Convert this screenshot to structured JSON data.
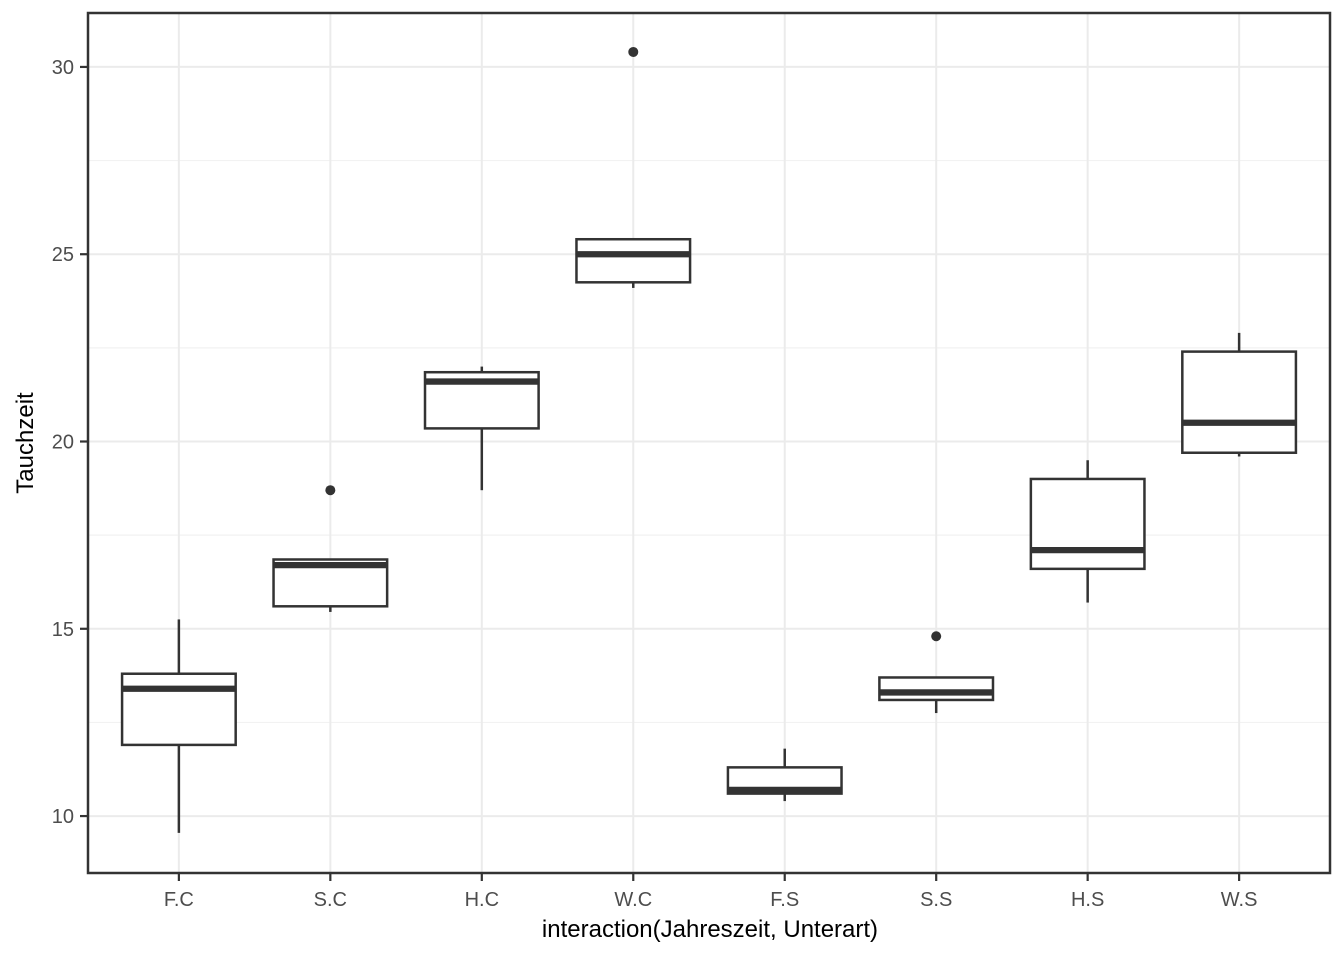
{
  "chart_data": {
    "type": "boxplot",
    "title": "",
    "xlabel": "interaction(Jahreszeit, Unterart)",
    "ylabel": "Tauchzeit",
    "categories": [
      "F.C",
      "S.C",
      "H.C",
      "W.C",
      "F.S",
      "S.S",
      "H.S",
      "W.S"
    ],
    "y_ticks": [
      10,
      15,
      20,
      25,
      30
    ],
    "y_minor_gridlines": [
      12.5,
      17.5,
      22.5,
      27.5
    ],
    "ylim": [
      8.48,
      31.44
    ],
    "grid": "major-and-minor, light grey on white, vertical major gridline at each category",
    "legend": "none",
    "boxes": [
      {
        "category": "F.C",
        "whisker_low": 9.55,
        "q1": 11.9,
        "median": 13.4,
        "q3": 13.8,
        "whisker_high": 15.25,
        "outliers": []
      },
      {
        "category": "S.C",
        "whisker_low": 15.45,
        "q1": 15.6,
        "median": 16.7,
        "q3": 16.85,
        "whisker_high": 16.85,
        "outliers": [
          18.7
        ]
      },
      {
        "category": "H.C",
        "whisker_low": 18.7,
        "q1": 20.35,
        "median": 21.6,
        "q3": 21.85,
        "whisker_high": 22.0,
        "outliers": []
      },
      {
        "category": "W.C",
        "whisker_low": 24.1,
        "q1": 24.25,
        "median": 25.0,
        "q3": 25.4,
        "whisker_high": 25.4,
        "outliers": [
          30.4
        ]
      },
      {
        "category": "F.S",
        "whisker_low": 10.4,
        "q1": 10.6,
        "median": 10.7,
        "q3": 11.3,
        "whisker_high": 11.8,
        "outliers": []
      },
      {
        "category": "S.S",
        "whisker_low": 12.75,
        "q1": 13.1,
        "median": 13.3,
        "q3": 13.7,
        "whisker_high": 13.7,
        "outliers": [
          14.8
        ]
      },
      {
        "category": "H.S",
        "whisker_low": 15.7,
        "q1": 16.6,
        "median": 17.1,
        "q3": 19.0,
        "whisker_high": 19.5,
        "outliers": []
      },
      {
        "category": "W.S",
        "whisker_low": 19.6,
        "q1": 19.7,
        "median": 20.5,
        "q3": 22.4,
        "whisker_high": 22.9,
        "outliers": []
      }
    ],
    "colors": {
      "background": "#ffffff",
      "panel_background": "#ffffff",
      "panel_border": "#333333",
      "box_stroke": "#333333",
      "box_fill": "#ffffff",
      "median_stroke": "#333333",
      "outlier_fill": "#333333",
      "grid_major": "#ebebeb",
      "grid_minor": "#f2f2f2",
      "tick_mark": "#333333",
      "tick_label": "#4d4d4d",
      "axis_title": "#000000"
    }
  }
}
